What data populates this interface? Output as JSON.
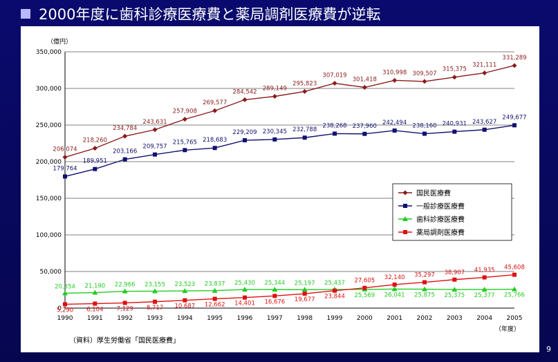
{
  "slide": {
    "title": "2000年度に歯科診療医療費と薬局調剤医療費が逆転",
    "page_number": "9"
  },
  "chart_data": {
    "type": "line",
    "x": [
      "1990",
      "1991",
      "1992",
      "1993",
      "1994",
      "1995",
      "1996",
      "1997",
      "1998",
      "1999",
      "2000",
      "2001",
      "2002",
      "2003",
      "2004",
      "2005"
    ],
    "y_unit_label": "（億円）",
    "x_unit_label": "（年度）",
    "ylim": [
      0,
      350000
    ],
    "yticks": [
      0,
      50000,
      100000,
      150000,
      200000,
      250000,
      300000,
      350000
    ],
    "ytick_labels": [
      "0",
      "50,000",
      "100,000",
      "150,000",
      "200,000",
      "250,000",
      "300,000",
      "350,000"
    ],
    "grid": true,
    "legend_position": "right-middle",
    "source_note": "（資料）厚生労働省「国民医療費」",
    "series": [
      {
        "name": "国民医療費",
        "color": "#8b1a1a",
        "marker": "diamond",
        "values": [
          206074,
          218260,
          234784,
          243631,
          257908,
          269577,
          284542,
          289149,
          295823,
          307019,
          301418,
          310998,
          309507,
          315375,
          321111,
          331289
        ],
        "labels": [
          "206,074",
          "218,260",
          "234,784",
          "243,631",
          "257,908",
          "269,577",
          "284,542",
          "289,149",
          "295,823",
          "307,019",
          "301,418",
          "310,998",
          "309,507",
          "315,375",
          "321,111",
          "331,289"
        ]
      },
      {
        "name": "一般診療医療費",
        "color": "#101070",
        "marker": "square",
        "values": [
          179764,
          189951,
          203166,
          209757,
          215765,
          218683,
          229209,
          230345,
          232788,
          238268,
          237960,
          242494,
          238160,
          240931,
          243627,
          249677
        ],
        "labels": [
          "179,764",
          "189,951",
          "203,166",
          "209,757",
          "215,765",
          "218,683",
          "229,209",
          "230,345",
          "232,788",
          "238,268",
          "237,960",
          "242,494",
          "238,160",
          "240,931",
          "243,627",
          "249,677"
        ]
      },
      {
        "name": "歯科診療医療費",
        "color": "#22cc22",
        "marker": "triangle",
        "values": [
          20354,
          21190,
          22966,
          23155,
          23523,
          23837,
          25430,
          25344,
          25197,
          25437,
          25569,
          26041,
          25875,
          25375,
          25377,
          25766
        ],
        "labels": [
          "20,354",
          "21,190",
          "22,966",
          "23,155",
          "23,523",
          "23,837",
          "25,430",
          "25,344",
          "25,197",
          "25,437",
          "25,569",
          "26,041",
          "25,875",
          "25,375",
          "25,377",
          "25,766"
        ]
      },
      {
        "name": "薬局調剤医療費",
        "color": "#dd1111",
        "marker": "square",
        "values": [
          5290,
          6104,
          7129,
          8717,
          10687,
          12662,
          14401,
          16676,
          19677,
          23844,
          27605,
          32140,
          35297,
          38907,
          41935,
          45608
        ],
        "labels": [
          "5,290",
          "6,104",
          "7,129",
          "8,717",
          "10,687",
          "12,662",
          "14,401",
          "16,676",
          "19,677",
          "23,844",
          "27,605",
          "32,140",
          "35,297",
          "38,907",
          "41,935",
          "45,608"
        ]
      }
    ]
  }
}
